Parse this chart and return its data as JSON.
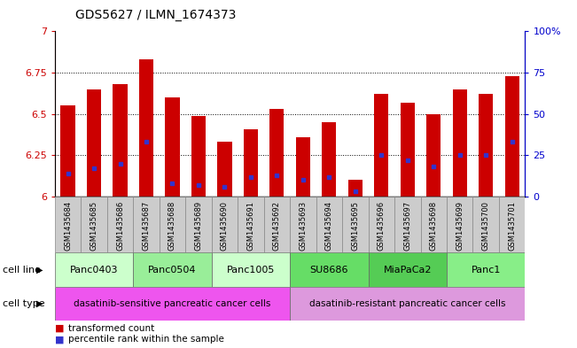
{
  "title": "GDS5627 / ILMN_1674373",
  "samples": [
    "GSM1435684",
    "GSM1435685",
    "GSM1435686",
    "GSM1435687",
    "GSM1435688",
    "GSM1435689",
    "GSM1435690",
    "GSM1435691",
    "GSM1435692",
    "GSM1435693",
    "GSM1435694",
    "GSM1435695",
    "GSM1435696",
    "GSM1435697",
    "GSM1435698",
    "GSM1435699",
    "GSM1435700",
    "GSM1435701"
  ],
  "bar_heights": [
    6.55,
    6.65,
    6.68,
    6.83,
    6.6,
    6.49,
    6.33,
    6.41,
    6.53,
    6.36,
    6.45,
    6.1,
    6.62,
    6.57,
    6.5,
    6.65,
    6.62,
    6.73
  ],
  "blue_values": [
    6.14,
    6.17,
    6.2,
    6.33,
    6.08,
    6.07,
    6.06,
    6.12,
    6.13,
    6.1,
    6.12,
    6.03,
    6.25,
    6.22,
    6.18,
    6.25,
    6.25,
    6.33
  ],
  "bar_color": "#cc0000",
  "blue_color": "#3333cc",
  "ymin": 6.0,
  "ymax": 7.0,
  "yticks": [
    6.0,
    6.25,
    6.5,
    6.75,
    7.0
  ],
  "ytick_labels": [
    "6",
    "6.25",
    "6.5",
    "6.75",
    "7"
  ],
  "right_ytick_labels": [
    "0",
    "25",
    "50",
    "75",
    "100%"
  ],
  "groups": [
    {
      "name": "Panc0403",
      "start": 0,
      "end": 3
    },
    {
      "name": "Panc0504",
      "start": 3,
      "end": 6
    },
    {
      "name": "Panc1005",
      "start": 6,
      "end": 9
    },
    {
      "name": "SU8686",
      "start": 9,
      "end": 12
    },
    {
      "name": "MiaPaCa2",
      "start": 12,
      "end": 15
    },
    {
      "name": "Panc1",
      "start": 15,
      "end": 18
    }
  ],
  "group_colors": [
    "#ccffcc",
    "#99ee99",
    "#ccffcc",
    "#66dd66",
    "#55cc55",
    "#88ee88"
  ],
  "sensitive_label": "dasatinib-sensitive pancreatic cancer cells",
  "resistant_label": "dasatinib-resistant pancreatic cancer cells",
  "sensitive_color": "#ee55ee",
  "resistant_color": "#dd99dd",
  "sample_box_color": "#cccccc",
  "legend_transformed": "transformed count",
  "legend_percentile": "percentile rank within the sample",
  "cell_line_label": "cell line",
  "cell_type_label": "cell type",
  "bar_width": 0.55,
  "title_fontsize": 10,
  "axis_color_left": "#cc0000",
  "axis_color_right": "#0000cc"
}
